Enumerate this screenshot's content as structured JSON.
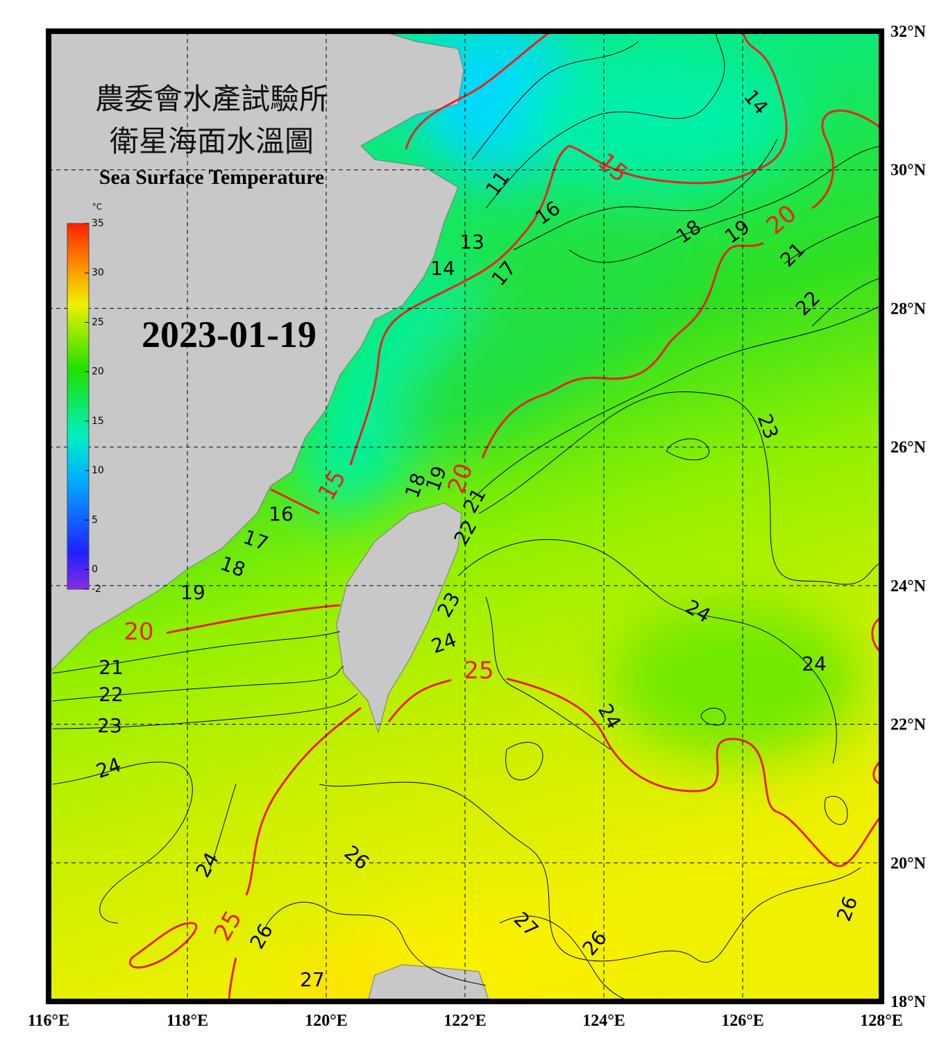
{
  "header": {
    "title_line1": "農委會水產試驗所",
    "title_line2": "衛星海面水溫圖",
    "subtitle": "Sea Surface Temperature",
    "date": "2023-01-19"
  },
  "colorbar": {
    "unit": "°C",
    "range": [
      -2,
      35
    ],
    "ticks": [
      35,
      30,
      25,
      20,
      15,
      10,
      5,
      0,
      -2
    ]
  },
  "map": {
    "lon_range": [
      116,
      128
    ],
    "lat_range": [
      18,
      32
    ],
    "lon_ticks": [
      {
        "value": 116,
        "label": "116°E"
      },
      {
        "value": 118,
        "label": "118°E"
      },
      {
        "value": 120,
        "label": "120°E"
      },
      {
        "value": 122,
        "label": "122°E"
      },
      {
        "value": 124,
        "label": "124°E"
      },
      {
        "value": 126,
        "label": "126°E"
      },
      {
        "value": 128,
        "label": "128°E"
      }
    ],
    "lat_ticks": [
      {
        "value": 32,
        "label": "32°N"
      },
      {
        "value": 30,
        "label": "30°N"
      },
      {
        "value": 28,
        "label": "28°N"
      },
      {
        "value": 26,
        "label": "26°N"
      },
      {
        "value": 24,
        "label": "24°N"
      },
      {
        "value": 22,
        "label": "22°N"
      },
      {
        "value": 20,
        "label": "20°N"
      },
      {
        "value": 18,
        "label": "18°N"
      }
    ],
    "grid": true,
    "contour_labels": [
      14,
      11,
      13,
      14,
      16,
      17,
      18,
      19,
      20,
      21,
      22,
      15,
      15,
      16,
      17,
      18,
      19,
      20,
      21,
      22,
      23,
      24,
      18,
      19,
      20,
      21,
      22,
      23,
      24,
      25,
      24,
      24,
      24,
      23,
      26,
      24,
      25,
      26,
      27,
      27,
      26,
      26
    ]
  }
}
